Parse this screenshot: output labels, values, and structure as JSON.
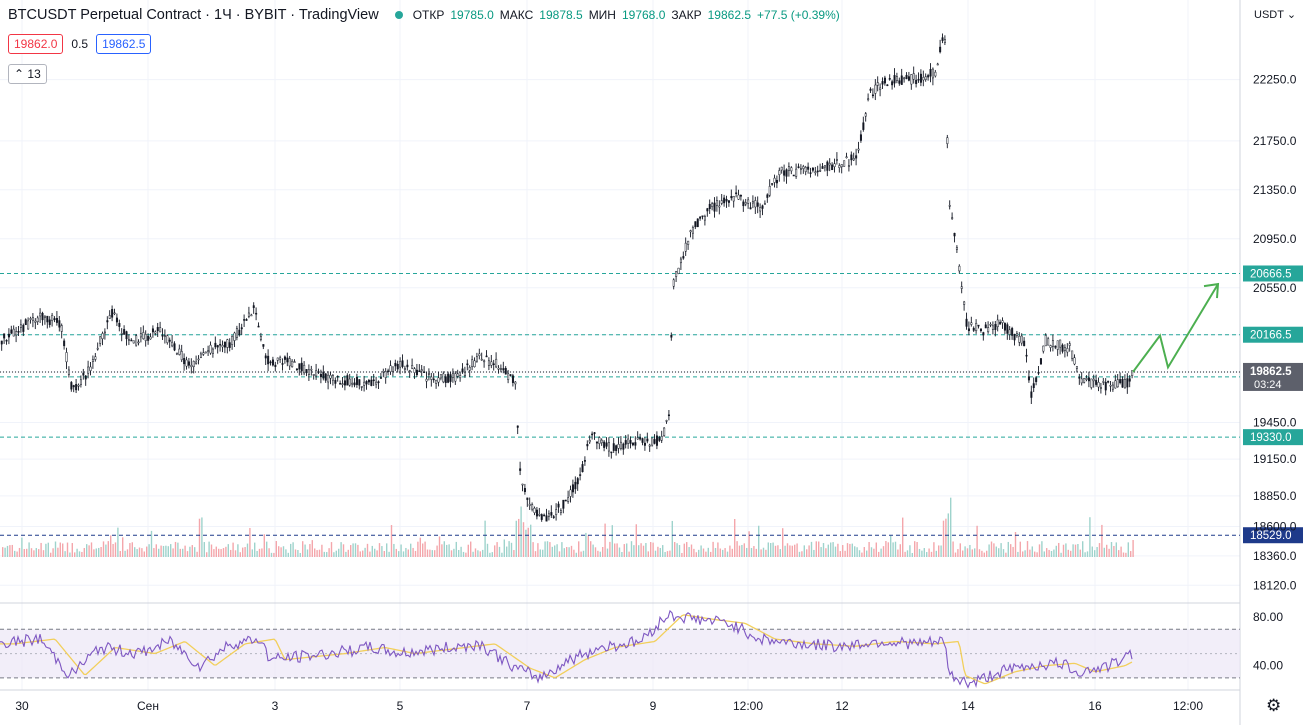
{
  "legend": {
    "title": "BTCUSDT Perpetual Contract · 1Ч · BYBIT · TradingView",
    "o_label": "ОТКР",
    "o": "19785.0",
    "h_label": "МАКС",
    "h": "19878.5",
    "l_label": "МИН",
    "l": "19768.0",
    "c_label": "ЗАКР",
    "c": "19862.5",
    "change": "+77.5 (+0.39%)"
  },
  "bid": "19862.0",
  "spread": "0.5",
  "ask": "19862.5",
  "indicators_count": "13",
  "currency": "USDT",
  "colors": {
    "accent_line": "#26a69a",
    "candle": "#131722",
    "arrow": "#4caf50",
    "rsi_line": "#7e57c2",
    "rsi_ma": "#f2cf5b",
    "hline": "#26a69a",
    "label_bg": "#26a69a",
    "label_dark": "#1e3a8a"
  },
  "chart_data": {
    "type": "line",
    "price_ticks": [
      "22250.0",
      "21750.0",
      "21350.0",
      "20950.0",
      "20550.0",
      "20166.5",
      "19862.5",
      "19450.0",
      "19150.0",
      "18850.0",
      "18600.0",
      "18360.0",
      "18120.0"
    ],
    "price_ylim": [
      18000,
      22900
    ],
    "time_labels": [
      "30",
      "Сен",
      "3",
      "5",
      "7",
      "9",
      "12:00",
      "12",
      "14",
      "16",
      "12:00"
    ],
    "price_path": [
      [
        0,
        20120
      ],
      [
        40,
        20320
      ],
      [
        60,
        20250
      ],
      [
        72,
        19700
      ],
      [
        90,
        19900
      ],
      [
        110,
        20350
      ],
      [
        130,
        20100
      ],
      [
        160,
        20200
      ],
      [
        190,
        19900
      ],
      [
        210,
        20050
      ],
      [
        230,
        20100
      ],
      [
        255,
        20400
      ],
      [
        265,
        19950
      ],
      [
        290,
        19950
      ],
      [
        310,
        19850
      ],
      [
        340,
        19800
      ],
      [
        370,
        19760
      ],
      [
        400,
        19930
      ],
      [
        430,
        19800
      ],
      [
        460,
        19830
      ],
      [
        480,
        20000
      ],
      [
        500,
        19900
      ],
      [
        515,
        19780
      ],
      [
        520,
        18950
      ],
      [
        540,
        18650
      ],
      [
        560,
        18750
      ],
      [
        580,
        19000
      ],
      [
        590,
        19350
      ],
      [
        610,
        19250
      ],
      [
        630,
        19280
      ],
      [
        660,
        19300
      ],
      [
        668,
        19470
      ],
      [
        672,
        20560
      ],
      [
        690,
        21000
      ],
      [
        710,
        21200
      ],
      [
        730,
        21300
      ],
      [
        760,
        21200
      ],
      [
        780,
        21500
      ],
      [
        800,
        21500
      ],
      [
        830,
        21550
      ],
      [
        855,
        21600
      ],
      [
        870,
        22150
      ],
      [
        890,
        22250
      ],
      [
        910,
        22250
      ],
      [
        935,
        22300
      ],
      [
        944,
        22650
      ],
      [
        948,
        21250
      ],
      [
        958,
        20750
      ],
      [
        966,
        20250
      ],
      [
        980,
        20200
      ],
      [
        1000,
        20250
      ],
      [
        1025,
        20100
      ],
      [
        1030,
        19650
      ],
      [
        1045,
        20120
      ],
      [
        1070,
        20050
      ],
      [
        1080,
        19800
      ],
      [
        1100,
        19750
      ],
      [
        1128,
        19780
      ],
      [
        1133,
        19862.5
      ]
    ],
    "forecast_path": [
      [
        1133,
        19862.5
      ],
      [
        1160,
        20160
      ],
      [
        1168,
        19900
      ],
      [
        1218,
        20580
      ]
    ],
    "levels": [
      {
        "price": "20666.5",
        "style": "teal"
      },
      {
        "price": "20166.5",
        "style": "teal"
      },
      {
        "price": "19822.5",
        "style": "teal"
      },
      {
        "price": "19330.0",
        "style": "teal"
      },
      {
        "price": "18529.0",
        "style": "dark"
      }
    ],
    "last_price": "19862.5",
    "countdown": "03:24",
    "rsi_ticks": [
      "80.00",
      "40.00"
    ],
    "rsi_ylim": [
      20,
      90
    ],
    "rsi_path": [
      [
        0,
        58
      ],
      [
        40,
        62
      ],
      [
        70,
        32
      ],
      [
        100,
        55
      ],
      [
        140,
        50
      ],
      [
        170,
        60
      ],
      [
        200,
        40
      ],
      [
        230,
        58
      ],
      [
        260,
        62
      ],
      [
        270,
        45
      ],
      [
        330,
        50
      ],
      [
        370,
        55
      ],
      [
        400,
        50
      ],
      [
        480,
        58
      ],
      [
        515,
        38
      ],
      [
        540,
        30
      ],
      [
        570,
        45
      ],
      [
        600,
        55
      ],
      [
        640,
        60
      ],
      [
        668,
        82
      ],
      [
        700,
        78
      ],
      [
        730,
        75
      ],
      [
        760,
        62
      ],
      [
        800,
        58
      ],
      [
        840,
        56
      ],
      [
        880,
        60
      ],
      [
        920,
        58
      ],
      [
        944,
        60
      ],
      [
        950,
        32
      ],
      [
        970,
        25
      ],
      [
        1000,
        35
      ],
      [
        1030,
        40
      ],
      [
        1060,
        42
      ],
      [
        1080,
        35
      ],
      [
        1110,
        40
      ],
      [
        1133,
        50
      ]
    ]
  }
}
